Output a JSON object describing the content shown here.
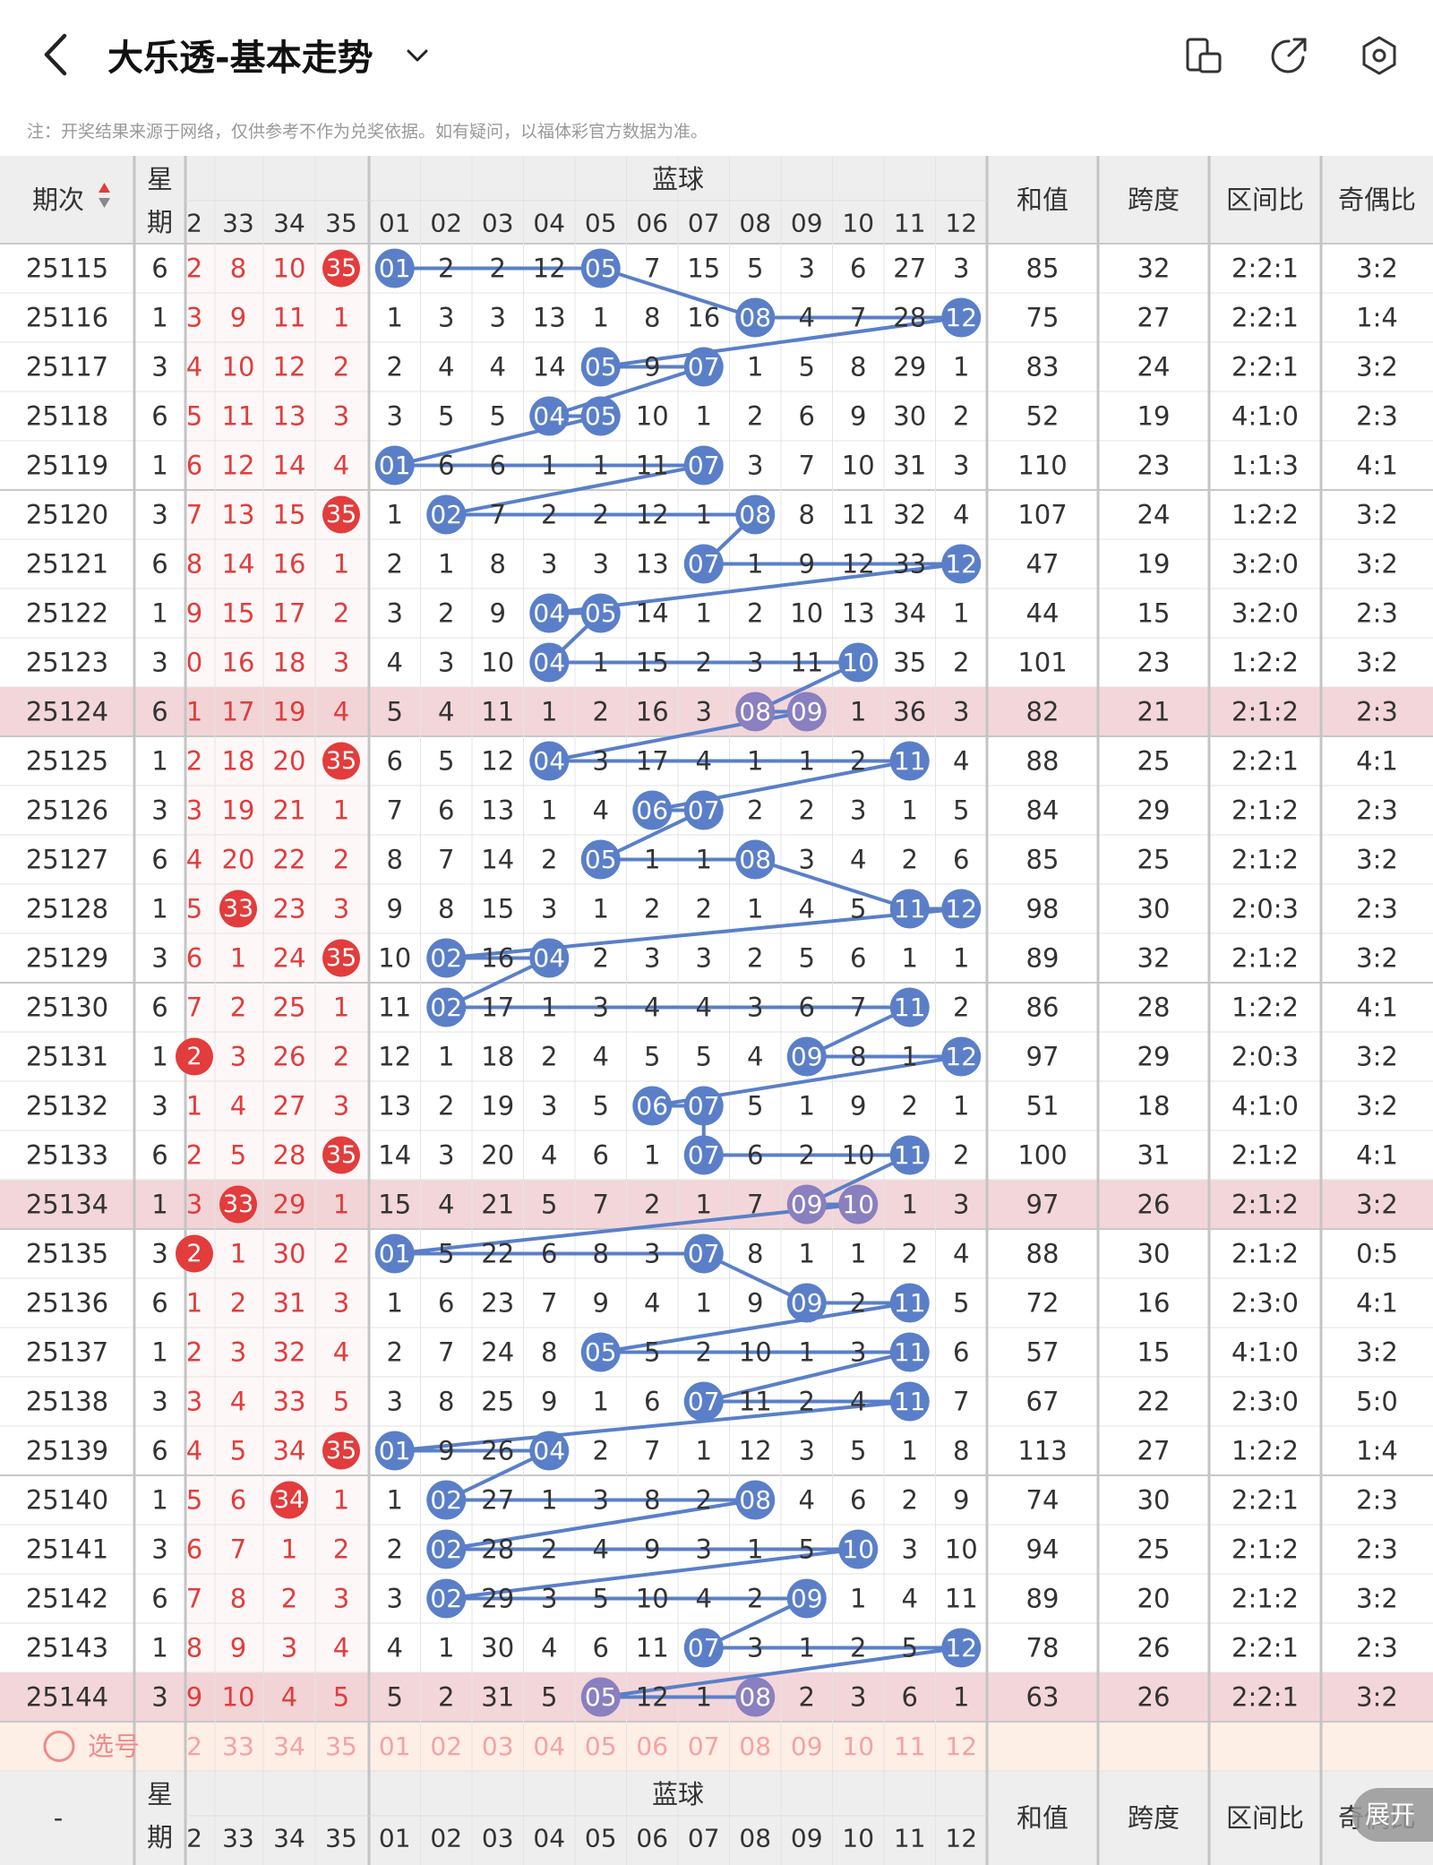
{
  "header": {
    "title": "大乐透-基本走势",
    "note": "注：开奖结果来源于网络，仅供参考不作为兑奖依据。如有疑问，以福体彩官方数据为准。",
    "icons": [
      "back-arrow-icon",
      "chevron-down-icon",
      "phone-rotate-icon",
      "share-icon",
      "settings-icon"
    ]
  },
  "table": {
    "issue_header": "期次",
    "week_header": "星期",
    "blue_header": "蓝球",
    "red_cols": [
      "2",
      "33",
      "34",
      "35"
    ],
    "blue_cols": [
      "01",
      "02",
      "03",
      "04",
      "05",
      "06",
      "07",
      "08",
      "09",
      "10",
      "11",
      "12"
    ],
    "sum_header": "和值",
    "span_header": "跨度",
    "zone_header": "区间比",
    "odd_header": "奇偶比",
    "rows": [
      {
        "issue": "25115",
        "week": "6",
        "red": [
          "2",
          "8",
          "10",
          "35"
        ],
        "redhit": [
          0,
          0,
          0,
          1
        ],
        "blue": [
          "01",
          "2",
          "2",
          "12",
          "05",
          "7",
          "15",
          "5",
          "3",
          "6",
          "27",
          "3"
        ],
        "hits": [
          0,
          4
        ],
        "sum": "85",
        "span": "32",
        "zone": "2:2:1",
        "odd": "3:2"
      },
      {
        "issue": "25116",
        "week": "1",
        "red": [
          "3",
          "9",
          "11",
          "1"
        ],
        "redhit": [
          0,
          0,
          0,
          0
        ],
        "blue": [
          "1",
          "3",
          "3",
          "13",
          "1",
          "8",
          "16",
          "08",
          "4",
          "7",
          "28",
          "12"
        ],
        "hits": [
          7,
          11
        ],
        "sum": "75",
        "span": "27",
        "zone": "2:2:1",
        "odd": "1:4"
      },
      {
        "issue": "25117",
        "week": "3",
        "red": [
          "4",
          "10",
          "12",
          "2"
        ],
        "redhit": [
          0,
          0,
          0,
          0
        ],
        "blue": [
          "2",
          "4",
          "4",
          "14",
          "05",
          "9",
          "07",
          "1",
          "5",
          "8",
          "29",
          "1"
        ],
        "hits": [
          4,
          6
        ],
        "sum": "83",
        "span": "24",
        "zone": "2:2:1",
        "odd": "3:2"
      },
      {
        "issue": "25118",
        "week": "6",
        "red": [
          "5",
          "11",
          "13",
          "3"
        ],
        "redhit": [
          0,
          0,
          0,
          0
        ],
        "blue": [
          "3",
          "5",
          "5",
          "04",
          "05",
          "10",
          "1",
          "2",
          "6",
          "9",
          "30",
          "2"
        ],
        "hits": [
          3,
          4
        ],
        "sum": "52",
        "span": "19",
        "zone": "4:1:0",
        "odd": "2:3"
      },
      {
        "issue": "25119",
        "week": "1",
        "red": [
          "6",
          "12",
          "14",
          "4"
        ],
        "redhit": [
          0,
          0,
          0,
          0
        ],
        "blue": [
          "01",
          "6",
          "6",
          "1",
          "1",
          "11",
          "07",
          "3",
          "7",
          "10",
          "31",
          "3"
        ],
        "hits": [
          0,
          6
        ],
        "sum": "110",
        "span": "23",
        "zone": "1:1:3",
        "odd": "4:1"
      },
      {
        "issue": "25120",
        "week": "3",
        "red": [
          "7",
          "13",
          "15",
          "35"
        ],
        "redhit": [
          0,
          0,
          0,
          1
        ],
        "blue": [
          "1",
          "02",
          "7",
          "2",
          "2",
          "12",
          "1",
          "08",
          "8",
          "11",
          "32",
          "4"
        ],
        "hits": [
          1,
          7
        ],
        "sum": "107",
        "span": "24",
        "zone": "1:2:2",
        "odd": "3:2"
      },
      {
        "issue": "25121",
        "week": "6",
        "red": [
          "8",
          "14",
          "16",
          "1"
        ],
        "redhit": [
          0,
          0,
          0,
          0
        ],
        "blue": [
          "2",
          "1",
          "8",
          "3",
          "3",
          "13",
          "07",
          "1",
          "9",
          "12",
          "33",
          "12"
        ],
        "hits": [
          6,
          11
        ],
        "sum": "47",
        "span": "19",
        "zone": "3:2:0",
        "odd": "3:2"
      },
      {
        "issue": "25122",
        "week": "1",
        "red": [
          "9",
          "15",
          "17",
          "2"
        ],
        "redhit": [
          0,
          0,
          0,
          0
        ],
        "blue": [
          "3",
          "2",
          "9",
          "04",
          "05",
          "14",
          "1",
          "2",
          "10",
          "13",
          "34",
          "1"
        ],
        "hits": [
          3,
          4
        ],
        "sum": "44",
        "span": "15",
        "zone": "3:2:0",
        "odd": "2:3"
      },
      {
        "issue": "25123",
        "week": "3",
        "red": [
          "0",
          "16",
          "18",
          "3"
        ],
        "redhit": [
          0,
          0,
          0,
          0
        ],
        "blue": [
          "4",
          "3",
          "10",
          "04",
          "1",
          "15",
          "2",
          "3",
          "11",
          "10",
          "35",
          "2"
        ],
        "hits": [
          3,
          9
        ],
        "sum": "101",
        "span": "23",
        "zone": "1:2:2",
        "odd": "3:2"
      },
      {
        "issue": "25124",
        "week": "6",
        "red": [
          "1",
          "17",
          "19",
          "4"
        ],
        "redhit": [
          0,
          0,
          0,
          0
        ],
        "blue": [
          "5",
          "4",
          "11",
          "1",
          "2",
          "16",
          "3",
          "08",
          "09",
          "1",
          "36",
          "3"
        ],
        "hits": [
          7,
          8
        ],
        "sum": "82",
        "span": "21",
        "zone": "2:1:2",
        "odd": "2:3",
        "hl": true
      },
      {
        "issue": "25125",
        "week": "1",
        "red": [
          "2",
          "18",
          "20",
          "35"
        ],
        "redhit": [
          0,
          0,
          0,
          1
        ],
        "blue": [
          "6",
          "5",
          "12",
          "04",
          "3",
          "17",
          "4",
          "1",
          "1",
          "2",
          "11",
          "4"
        ],
        "hits": [
          3,
          10
        ],
        "sum": "88",
        "span": "25",
        "zone": "2:2:1",
        "odd": "4:1"
      },
      {
        "issue": "25126",
        "week": "3",
        "red": [
          "3",
          "19",
          "21",
          "1"
        ],
        "redhit": [
          0,
          0,
          0,
          0
        ],
        "blue": [
          "7",
          "6",
          "13",
          "1",
          "4",
          "06",
          "07",
          "2",
          "2",
          "3",
          "1",
          "5"
        ],
        "hits": [
          5,
          6
        ],
        "sum": "84",
        "span": "29",
        "zone": "2:1:2",
        "odd": "2:3"
      },
      {
        "issue": "25127",
        "week": "6",
        "red": [
          "4",
          "20",
          "22",
          "2"
        ],
        "redhit": [
          0,
          0,
          0,
          0
        ],
        "blue": [
          "8",
          "7",
          "14",
          "2",
          "05",
          "1",
          "1",
          "08",
          "3",
          "4",
          "2",
          "6"
        ],
        "hits": [
          4,
          7
        ],
        "sum": "85",
        "span": "25",
        "zone": "2:1:2",
        "odd": "3:2"
      },
      {
        "issue": "25128",
        "week": "1",
        "red": [
          "5",
          "33",
          "23",
          "3"
        ],
        "redhit": [
          0,
          1,
          0,
          0
        ],
        "blue": [
          "9",
          "8",
          "15",
          "3",
          "1",
          "2",
          "2",
          "1",
          "4",
          "5",
          "11",
          "12"
        ],
        "hits": [
          10,
          11
        ],
        "sum": "98",
        "span": "30",
        "zone": "2:0:3",
        "odd": "2:3"
      },
      {
        "issue": "25129",
        "week": "3",
        "red": [
          "6",
          "1",
          "24",
          "35"
        ],
        "redhit": [
          0,
          0,
          0,
          1
        ],
        "blue": [
          "10",
          "02",
          "16",
          "04",
          "2",
          "3",
          "3",
          "2",
          "5",
          "6",
          "1",
          "1"
        ],
        "hits": [
          1,
          3
        ],
        "sum": "89",
        "span": "32",
        "zone": "2:1:2",
        "odd": "3:2"
      },
      {
        "issue": "25130",
        "week": "6",
        "red": [
          "7",
          "2",
          "25",
          "1"
        ],
        "redhit": [
          0,
          0,
          0,
          0
        ],
        "blue": [
          "11",
          "02",
          "17",
          "1",
          "3",
          "4",
          "4",
          "3",
          "6",
          "7",
          "11",
          "2"
        ],
        "hits": [
          1,
          10
        ],
        "sum": "86",
        "span": "28",
        "zone": "1:2:2",
        "odd": "4:1"
      },
      {
        "issue": "25131",
        "week": "1",
        "red": [
          "2",
          "3",
          "26",
          "2"
        ],
        "redhit": [
          1,
          0,
          0,
          0
        ],
        "blue": [
          "12",
          "1",
          "18",
          "2",
          "4",
          "5",
          "5",
          "4",
          "09",
          "8",
          "1",
          "12"
        ],
        "hits": [
          8,
          11
        ],
        "sum": "97",
        "span": "29",
        "zone": "2:0:3",
        "odd": "3:2"
      },
      {
        "issue": "25132",
        "week": "3",
        "red": [
          "1",
          "4",
          "27",
          "3"
        ],
        "redhit": [
          0,
          0,
          0,
          0
        ],
        "blue": [
          "13",
          "2",
          "19",
          "3",
          "5",
          "06",
          "07",
          "5",
          "1",
          "9",
          "2",
          "1"
        ],
        "hits": [
          5,
          6
        ],
        "sum": "51",
        "span": "18",
        "zone": "4:1:0",
        "odd": "3:2"
      },
      {
        "issue": "25133",
        "week": "6",
        "red": [
          "2",
          "5",
          "28",
          "35"
        ],
        "redhit": [
          0,
          0,
          0,
          1
        ],
        "blue": [
          "14",
          "3",
          "20",
          "4",
          "6",
          "1",
          "07",
          "6",
          "2",
          "10",
          "11",
          "2"
        ],
        "hits": [
          6,
          10
        ],
        "sum": "100",
        "span": "31",
        "zone": "2:1:2",
        "odd": "4:1"
      },
      {
        "issue": "25134",
        "week": "1",
        "red": [
          "3",
          "33",
          "29",
          "1"
        ],
        "redhit": [
          0,
          1,
          0,
          0
        ],
        "blue": [
          "15",
          "4",
          "21",
          "5",
          "7",
          "2",
          "1",
          "7",
          "09",
          "10",
          "1",
          "3"
        ],
        "hits": [
          8,
          9
        ],
        "sum": "97",
        "span": "26",
        "zone": "2:1:2",
        "odd": "3:2",
        "hl": true
      },
      {
        "issue": "25135",
        "week": "3",
        "red": [
          "2",
          "1",
          "30",
          "2"
        ],
        "redhit": [
          1,
          0,
          0,
          0
        ],
        "blue": [
          "01",
          "5",
          "22",
          "6",
          "8",
          "3",
          "07",
          "8",
          "1",
          "1",
          "2",
          "4"
        ],
        "hits": [
          0,
          6
        ],
        "sum": "88",
        "span": "30",
        "zone": "2:1:2",
        "odd": "0:5"
      },
      {
        "issue": "25136",
        "week": "6",
        "red": [
          "1",
          "2",
          "31",
          "3"
        ],
        "redhit": [
          0,
          0,
          0,
          0
        ],
        "blue": [
          "1",
          "6",
          "23",
          "7",
          "9",
          "4",
          "1",
          "9",
          "09",
          "2",
          "11",
          "5"
        ],
        "hits": [
          8,
          10
        ],
        "sum": "72",
        "span": "16",
        "zone": "2:3:0",
        "odd": "4:1"
      },
      {
        "issue": "25137",
        "week": "1",
        "red": [
          "2",
          "3",
          "32",
          "4"
        ],
        "redhit": [
          0,
          0,
          0,
          0
        ],
        "blue": [
          "2",
          "7",
          "24",
          "8",
          "05",
          "5",
          "2",
          "10",
          "1",
          "3",
          "11",
          "6"
        ],
        "hits": [
          4,
          10
        ],
        "sum": "57",
        "span": "15",
        "zone": "4:1:0",
        "odd": "3:2"
      },
      {
        "issue": "25138",
        "week": "3",
        "red": [
          "3",
          "4",
          "33",
          "5"
        ],
        "redhit": [
          0,
          0,
          0,
          0
        ],
        "blue": [
          "3",
          "8",
          "25",
          "9",
          "1",
          "6",
          "07",
          "11",
          "2",
          "4",
          "11",
          "7"
        ],
        "hits": [
          6,
          10
        ],
        "sum": "67",
        "span": "22",
        "zone": "2:3:0",
        "odd": "5:0"
      },
      {
        "issue": "25139",
        "week": "6",
        "red": [
          "4",
          "5",
          "34",
          "35"
        ],
        "redhit": [
          0,
          0,
          0,
          1
        ],
        "blue": [
          "01",
          "9",
          "26",
          "04",
          "2",
          "7",
          "1",
          "12",
          "3",
          "5",
          "1",
          "8"
        ],
        "hits": [
          0,
          3
        ],
        "sum": "113",
        "span": "27",
        "zone": "1:2:2",
        "odd": "1:4"
      },
      {
        "issue": "25140",
        "week": "1",
        "red": [
          "5",
          "6",
          "34",
          "1"
        ],
        "redhit": [
          0,
          0,
          1,
          0
        ],
        "blue": [
          "1",
          "02",
          "27",
          "1",
          "3",
          "8",
          "2",
          "08",
          "4",
          "6",
          "2",
          "9"
        ],
        "hits": [
          1,
          7
        ],
        "sum": "74",
        "span": "30",
        "zone": "2:2:1",
        "odd": "2:3"
      },
      {
        "issue": "25141",
        "week": "3",
        "red": [
          "6",
          "7",
          "1",
          "2"
        ],
        "redhit": [
          0,
          0,
          0,
          0
        ],
        "blue": [
          "2",
          "02",
          "28",
          "2",
          "4",
          "9",
          "3",
          "1",
          "5",
          "10",
          "3",
          "10"
        ],
        "hits": [
          1,
          9
        ],
        "sum": "94",
        "span": "25",
        "zone": "2:1:2",
        "odd": "2:3"
      },
      {
        "issue": "25142",
        "week": "6",
        "red": [
          "7",
          "8",
          "2",
          "3"
        ],
        "redhit": [
          0,
          0,
          0,
          0
        ],
        "blue": [
          "3",
          "02",
          "29",
          "3",
          "5",
          "10",
          "4",
          "2",
          "09",
          "1",
          "4",
          "11"
        ],
        "hits": [
          1,
          8
        ],
        "sum": "89",
        "span": "20",
        "zone": "2:1:2",
        "odd": "3:2"
      },
      {
        "issue": "25143",
        "week": "1",
        "red": [
          "8",
          "9",
          "3",
          "4"
        ],
        "redhit": [
          0,
          0,
          0,
          0
        ],
        "blue": [
          "4",
          "1",
          "30",
          "4",
          "6",
          "11",
          "07",
          "3",
          "1",
          "2",
          "5",
          "12"
        ],
        "hits": [
          6,
          11
        ],
        "sum": "78",
        "span": "26",
        "zone": "2:2:1",
        "odd": "2:3"
      },
      {
        "issue": "25144",
        "week": "3",
        "red": [
          "9",
          "10",
          "4",
          "5"
        ],
        "redhit": [
          0,
          0,
          0,
          0
        ],
        "blue": [
          "5",
          "2",
          "31",
          "5",
          "05",
          "12",
          "1",
          "08",
          "2",
          "3",
          "6",
          "1"
        ],
        "hits": [
          4,
          7
        ],
        "sum": "63",
        "span": "26",
        "zone": "2:2:1",
        "odd": "3:2",
        "hl": true
      }
    ],
    "select_label": "选号",
    "footer_issue": "-",
    "expand_label": "展开"
  },
  "colors": {
    "ball_blue": "#5a7fc8",
    "ball_blue_hl": "#8a7fbf",
    "ball_red": "#e23c3c",
    "red_text": "#e23c3c",
    "row_highlight": "#f3d6d9",
    "header_bg": "#eeeeee",
    "select_row_bg": "#fdeee6"
  }
}
